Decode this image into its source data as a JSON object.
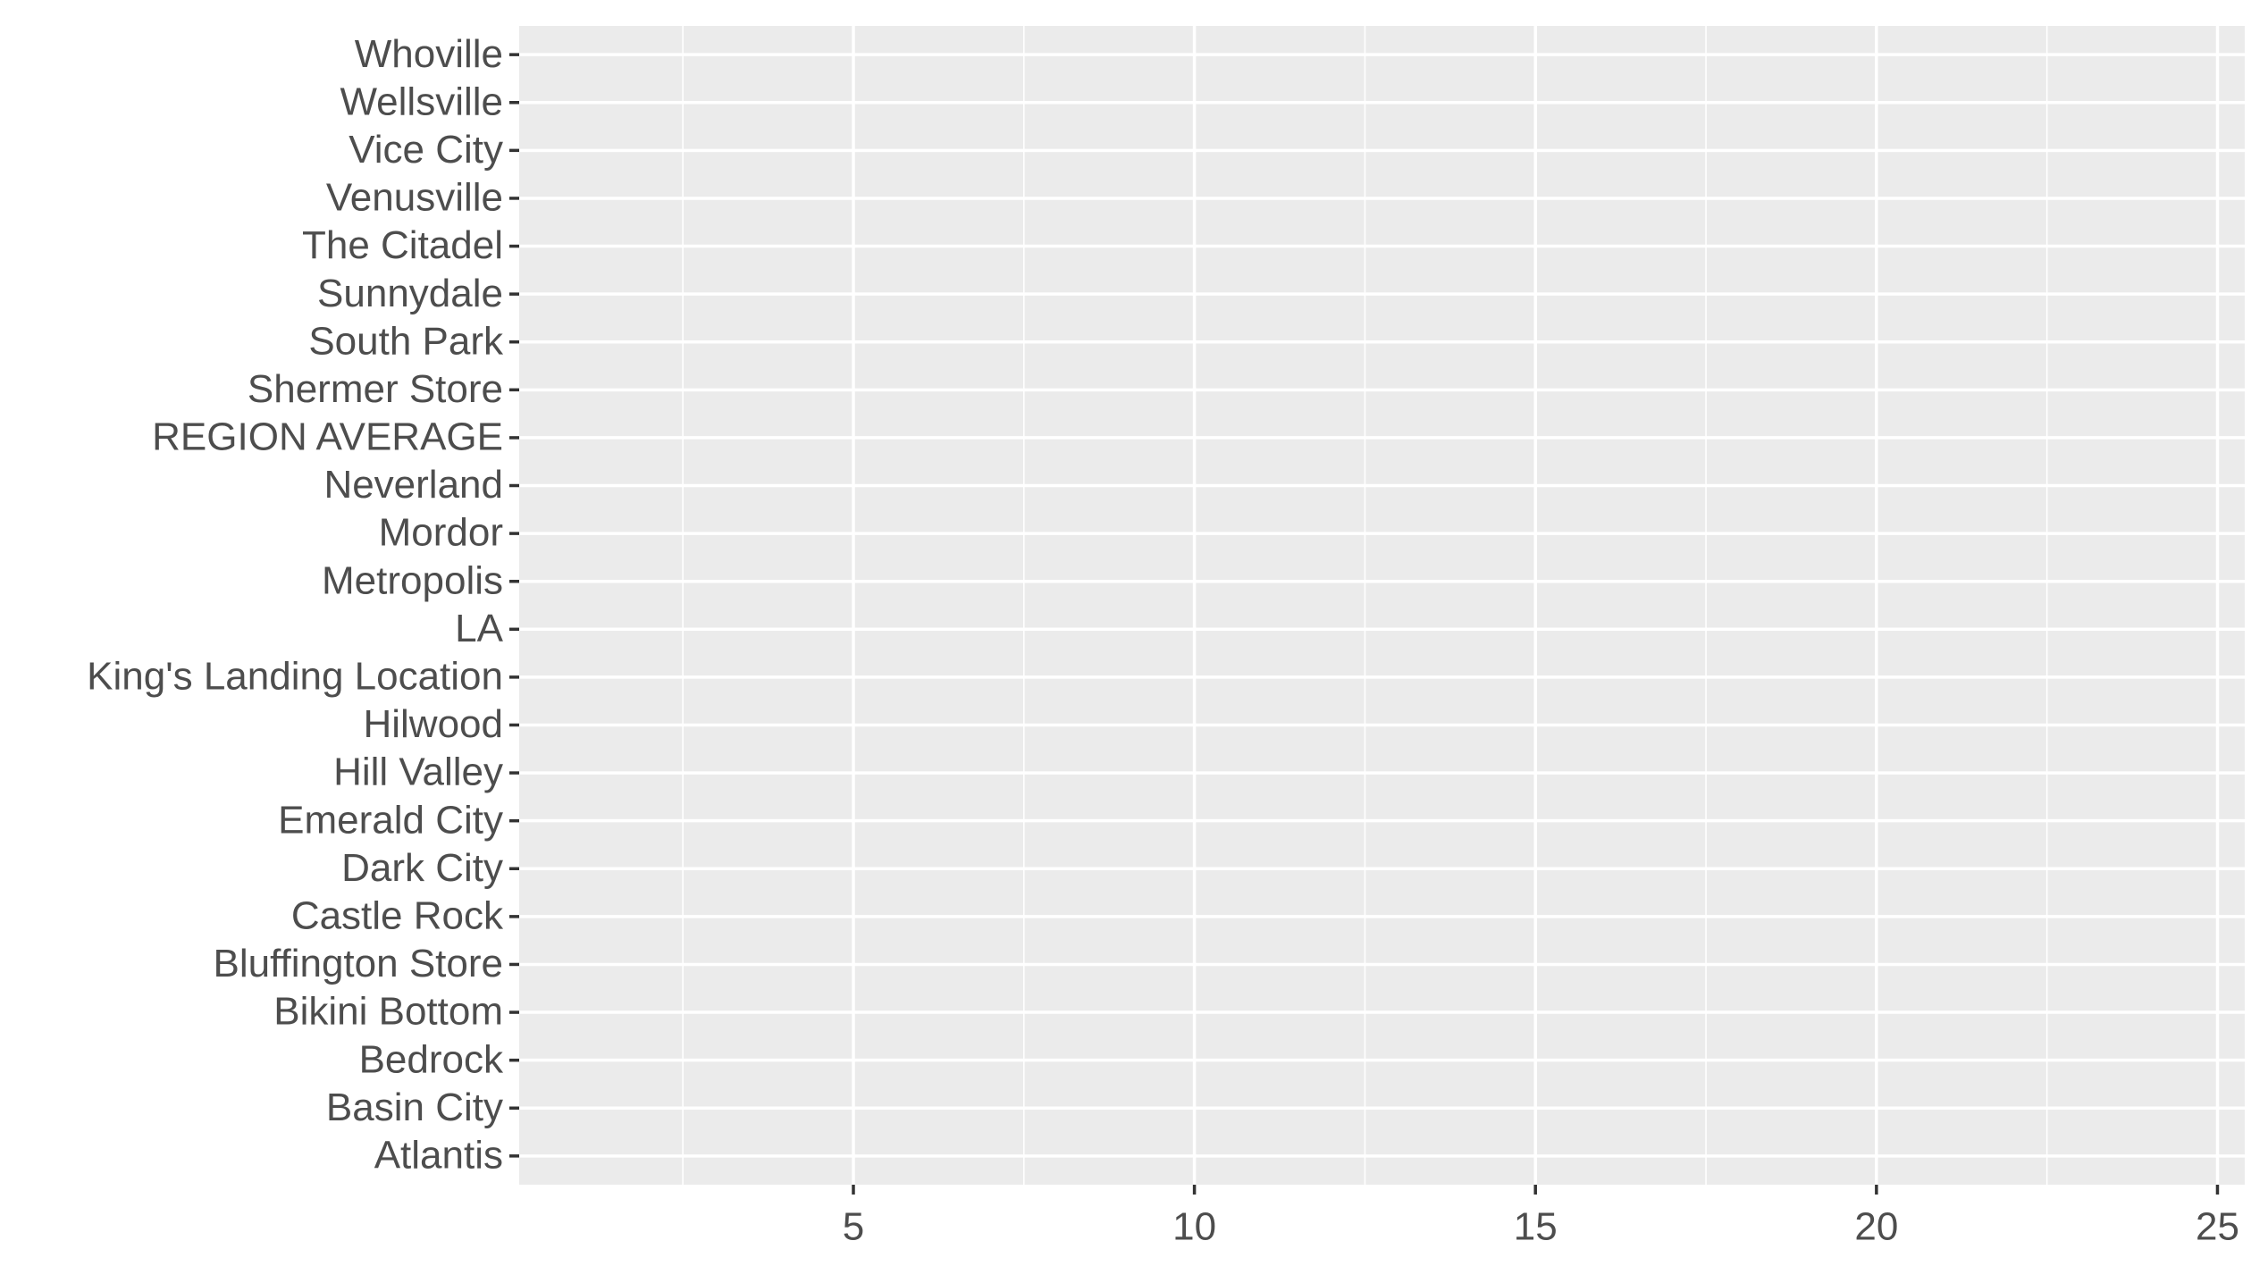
{
  "chart_data": {
    "type": "bar",
    "orientation": "horizontal",
    "categories": [
      "Atlantis",
      "Basin City",
      "Bedrock",
      "Bikini Bottom",
      "Bluffington Store",
      "Castle Rock",
      "Dark City",
      "Emerald City",
      "Hill Valley",
      "Hilwood",
      "King's Landing Location",
      "LA",
      "Metropolis",
      "Mordor",
      "Neverland",
      "REGION AVERAGE",
      "Shermer Store",
      "South Park",
      "Sunnydale",
      "The Citadel",
      "Venusville",
      "Vice City",
      "Wellsville",
      "Whoville"
    ],
    "xlim": [
      0.1,
      25.4
    ],
    "xticks": [
      5,
      10,
      15,
      20,
      25
    ],
    "grid": true,
    "panel_color": "#ebebeb"
  }
}
